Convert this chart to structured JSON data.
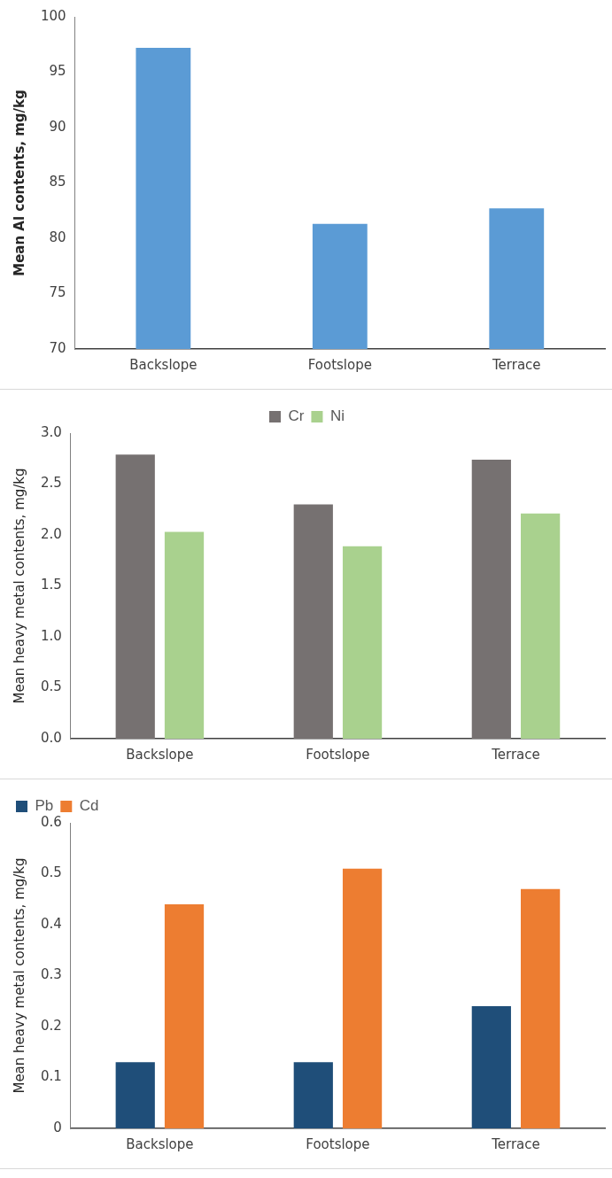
{
  "chart_data": [
    {
      "type": "bar",
      "ylabel": "Mean Al contents, mg/kg",
      "categories": [
        "Backslope",
        "Footslope",
        "Terrace"
      ],
      "series": [
        {
          "color": "#5b9bd5",
          "values": [
            97.2,
            81.3,
            82.7
          ]
        }
      ],
      "ylim": [
        70,
        100
      ],
      "yticks": [
        70,
        75,
        80,
        85,
        90,
        95,
        100
      ],
      "grid": false,
      "legend": false
    },
    {
      "type": "bar",
      "ylabel": "Mean heavy metal contents, mg/kg",
      "categories": [
        "Backslope",
        "Footslope",
        "Terrace"
      ],
      "series": [
        {
          "name": "Cr",
          "color": "#767171",
          "values": [
            2.79,
            2.3,
            2.74
          ]
        },
        {
          "name": "Ni",
          "color": "#a9d18e",
          "values": [
            2.03,
            1.89,
            2.21
          ]
        }
      ],
      "ylim": [
        0,
        3
      ],
      "yticks": [
        {
          "value": 0,
          "label": "0.0"
        },
        0.5,
        {
          "value": 1,
          "label": "1.0"
        },
        1.5,
        {
          "value": 2,
          "label": "2.0"
        },
        2.5,
        {
          "value": 3,
          "label": "3.0"
        }
      ],
      "grid": false,
      "legend": "top"
    },
    {
      "type": "bar",
      "ylabel": "Mean heavy metal contents, mg/kg",
      "categories": [
        "Backslope",
        "Footslope",
        "Terrace"
      ],
      "series": [
        {
          "name": "Pb",
          "color": "#1f4e79",
          "values": [
            0.13,
            0.13,
            0.24
          ]
        },
        {
          "name": "Cd",
          "color": "#ed7d31",
          "values": [
            0.44,
            0.51,
            0.47
          ]
        }
      ],
      "ylim": [
        0,
        0.6
      ],
      "yticks": [
        0,
        0.1,
        0.2,
        0.3,
        0.4,
        0.5,
        0.6
      ],
      "grid": false,
      "legend": "top left"
    }
  ]
}
